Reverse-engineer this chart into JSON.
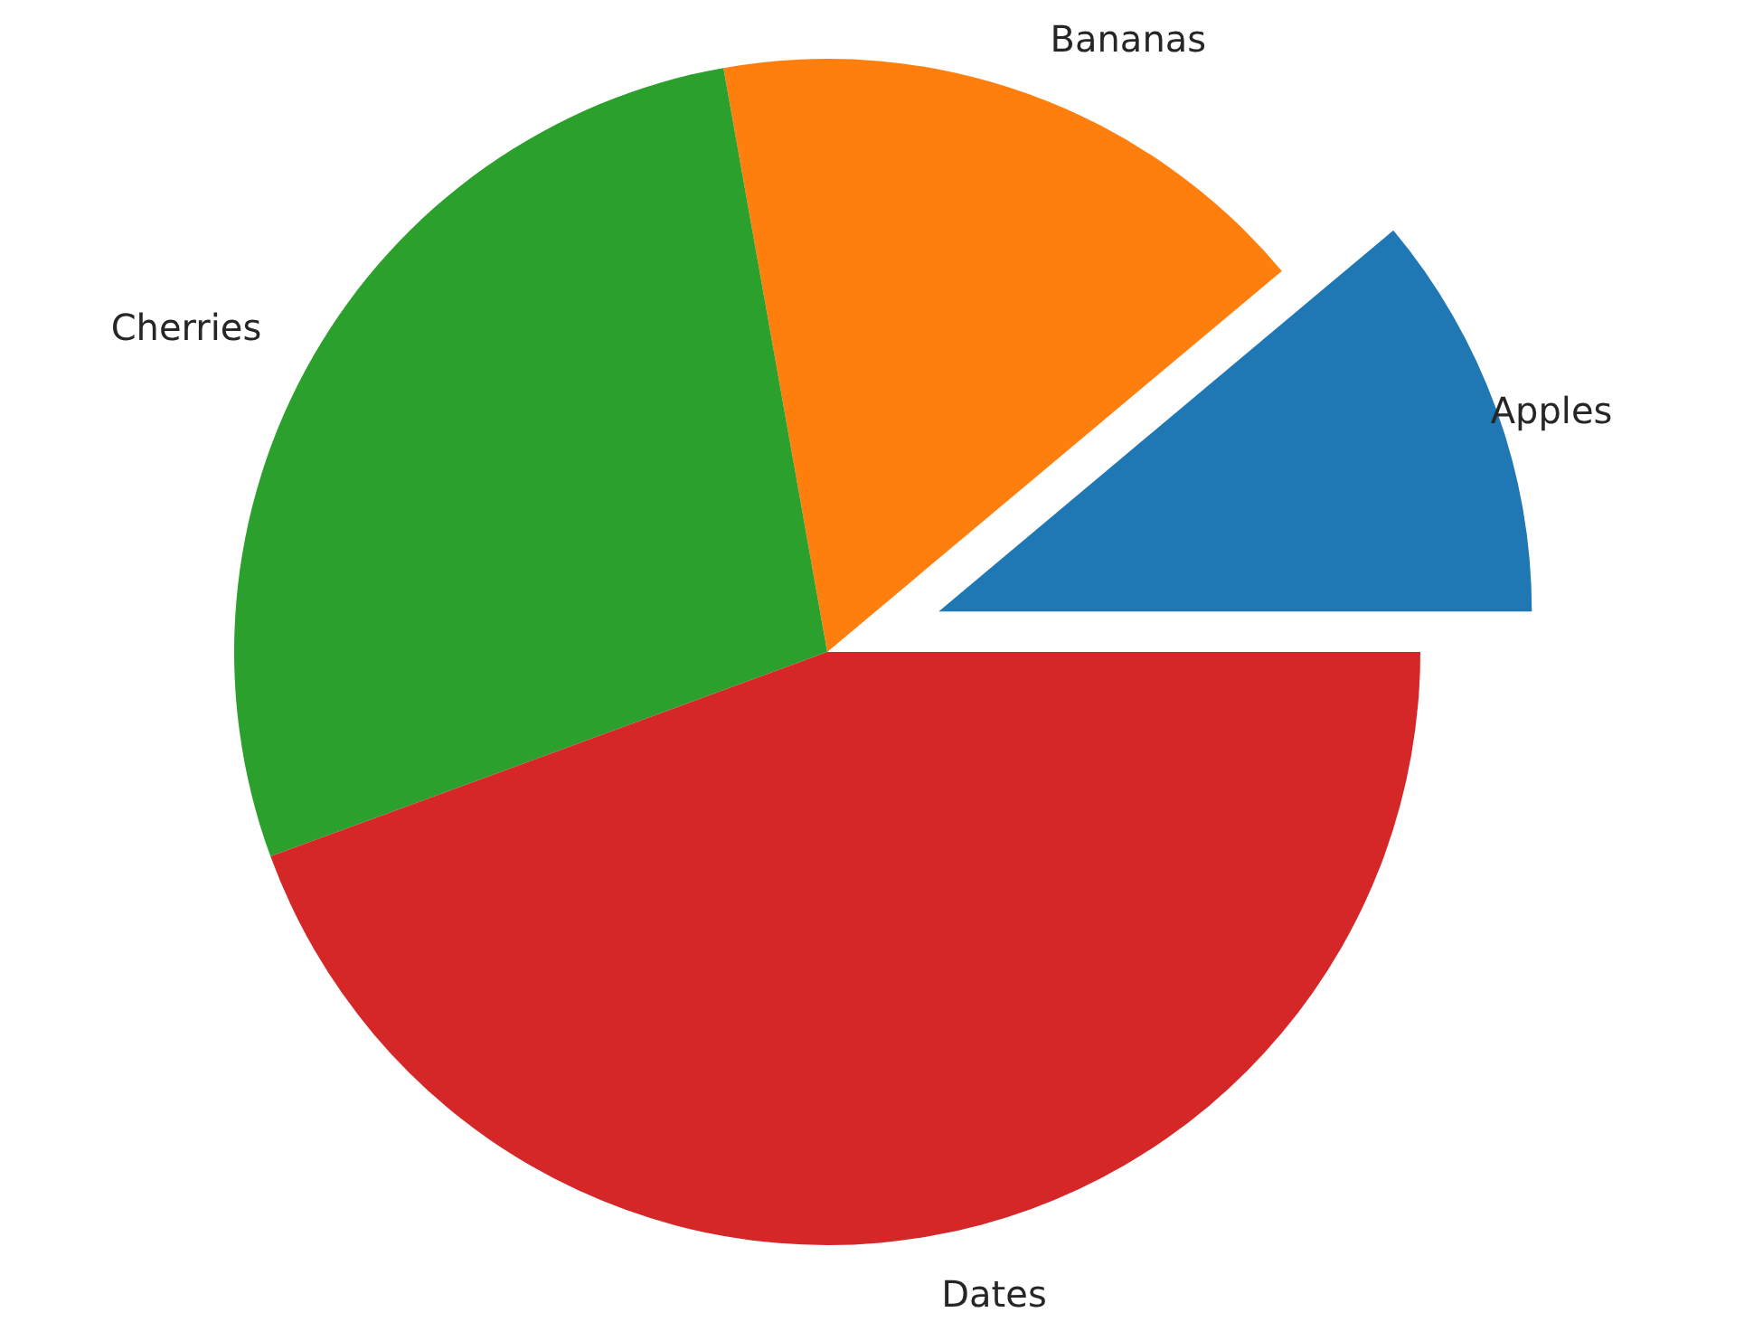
{
  "chart_data": {
    "type": "pie",
    "categories": [
      "Apples",
      "Bananas",
      "Cherries",
      "Dates"
    ],
    "values": [
      11.1,
      16.7,
      27.8,
      44.4
    ],
    "colors": [
      "#1f77b4",
      "#ff7f0e",
      "#2ca02c",
      "#d62728"
    ]
  }
}
